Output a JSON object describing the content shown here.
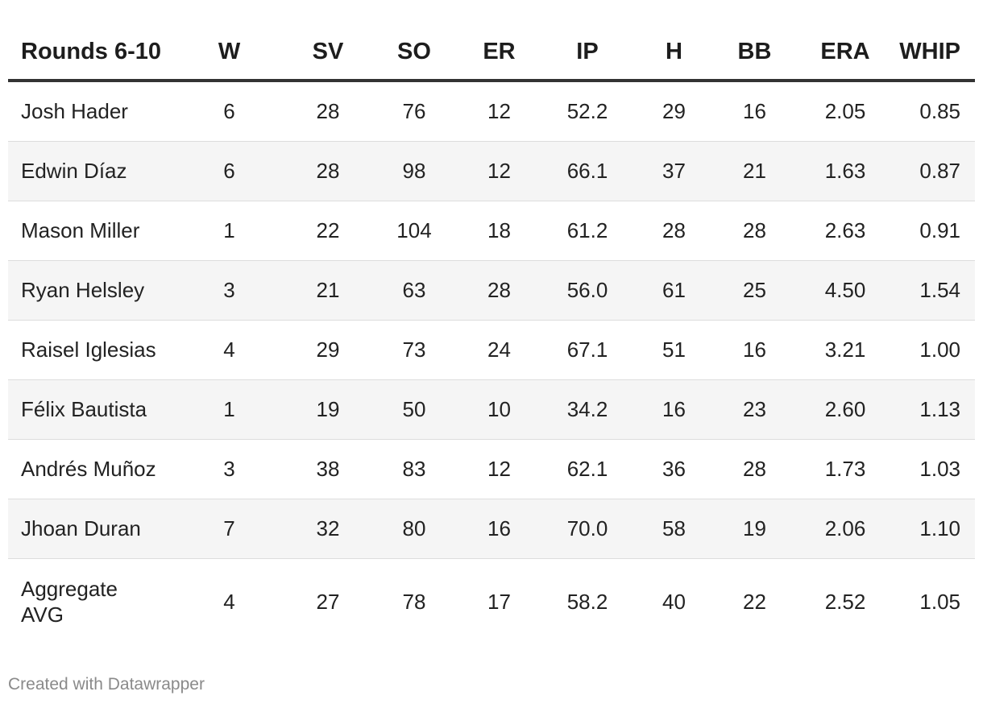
{
  "table": {
    "columns": [
      "Rounds 6-10",
      "W",
      "SV",
      "SO",
      "ER",
      "IP",
      "H",
      "BB",
      "ERA",
      "WHIP"
    ],
    "rows": [
      [
        "Josh Hader",
        "6",
        "28",
        "76",
        "12",
        "52.2",
        "29",
        "16",
        "2.05",
        "0.85"
      ],
      [
        "Edwin Díaz",
        "6",
        "28",
        "98",
        "12",
        "66.1",
        "37",
        "21",
        "1.63",
        "0.87"
      ],
      [
        "Mason Miller",
        "1",
        "22",
        "104",
        "18",
        "61.2",
        "28",
        "28",
        "2.63",
        "0.91"
      ],
      [
        "Ryan Helsley",
        "3",
        "21",
        "63",
        "28",
        "56.0",
        "61",
        "25",
        "4.50",
        "1.54"
      ],
      [
        "Raisel Iglesias",
        "4",
        "29",
        "73",
        "24",
        "67.1",
        "51",
        "16",
        "3.21",
        "1.00"
      ],
      [
        "Félix Bautista",
        "1",
        "19",
        "50",
        "10",
        "34.2",
        "16",
        "23",
        "2.60",
        "1.13"
      ],
      [
        "Andrés Muñoz",
        "3",
        "38",
        "83",
        "12",
        "62.1",
        "36",
        "28",
        "1.73",
        "1.03"
      ],
      [
        "Jhoan Duran",
        "7",
        "32",
        "80",
        "16",
        "70.0",
        "58",
        "19",
        "2.06",
        "1.10"
      ]
    ],
    "aggregate": {
      "label_line1": "Aggregate",
      "label_line2": "AVG",
      "values": [
        "4",
        "27",
        "78",
        "17",
        "58.2",
        "40",
        "22",
        "2.52",
        "1.05"
      ]
    }
  },
  "footer": {
    "credit": "Created with Datawrapper"
  },
  "colors": {
    "header_rule": "#333333",
    "row_stripe": "#f5f5f5",
    "row_divider": "#dddddd",
    "footer_text": "#8a8a8a"
  }
}
